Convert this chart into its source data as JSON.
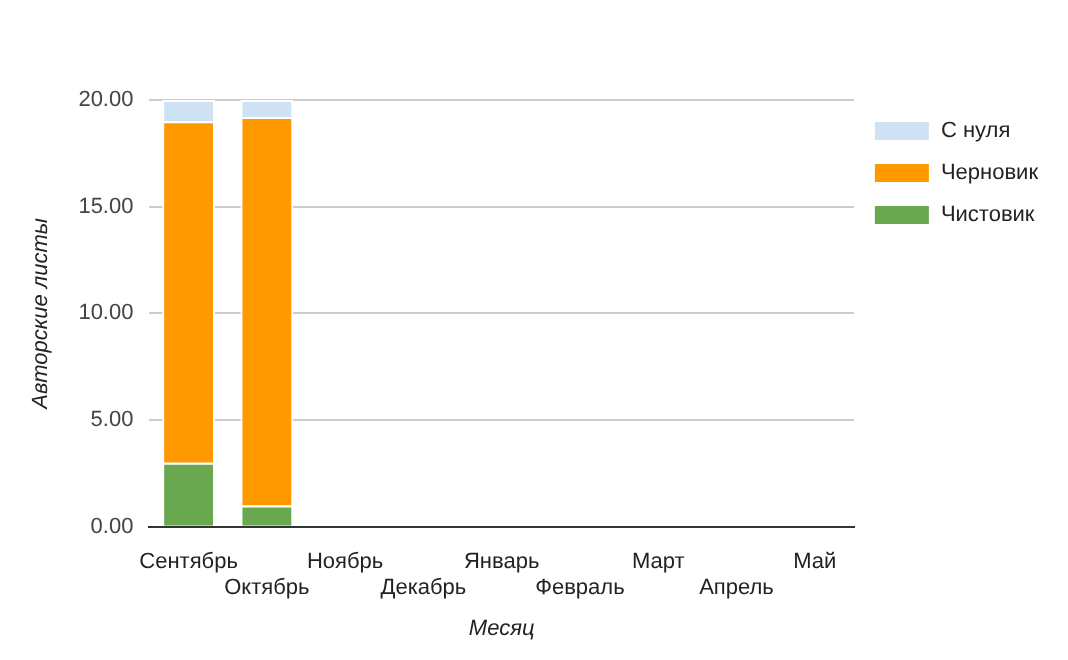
{
  "chart_data": {
    "type": "bar",
    "stacked": true,
    "xlabel": "Месяц",
    "ylabel": "Авторские листы",
    "categories": [
      "Сентябрь",
      "Октябрь",
      "Ноябрь",
      "Декабрь",
      "Январь",
      "Февраль",
      "Март",
      "Апрель",
      "Май"
    ],
    "series": [
      {
        "name": "Чистовик",
        "color": "#6aa84f",
        "values": [
          3.0,
          1.0,
          null,
          null,
          null,
          null,
          null,
          null,
          null
        ]
      },
      {
        "name": "Черновик",
        "color": "#ff9900",
        "values": [
          16.0,
          18.2,
          null,
          null,
          null,
          null,
          null,
          null,
          null
        ]
      },
      {
        "name": "С нуля",
        "color": "#cfe2f3",
        "values": [
          1.0,
          0.8,
          null,
          null,
          null,
          null,
          null,
          null,
          null
        ]
      }
    ],
    "ylim": [
      0,
      20
    ],
    "yticks": [
      {
        "value": 0,
        "label": "0.00"
      },
      {
        "value": 5,
        "label": "5.00"
      },
      {
        "value": 10,
        "label": "10.00"
      },
      {
        "value": 15,
        "label": "15.00"
      },
      {
        "value": 20,
        "label": "20.00"
      }
    ],
    "grid": "y",
    "legend": "right"
  }
}
